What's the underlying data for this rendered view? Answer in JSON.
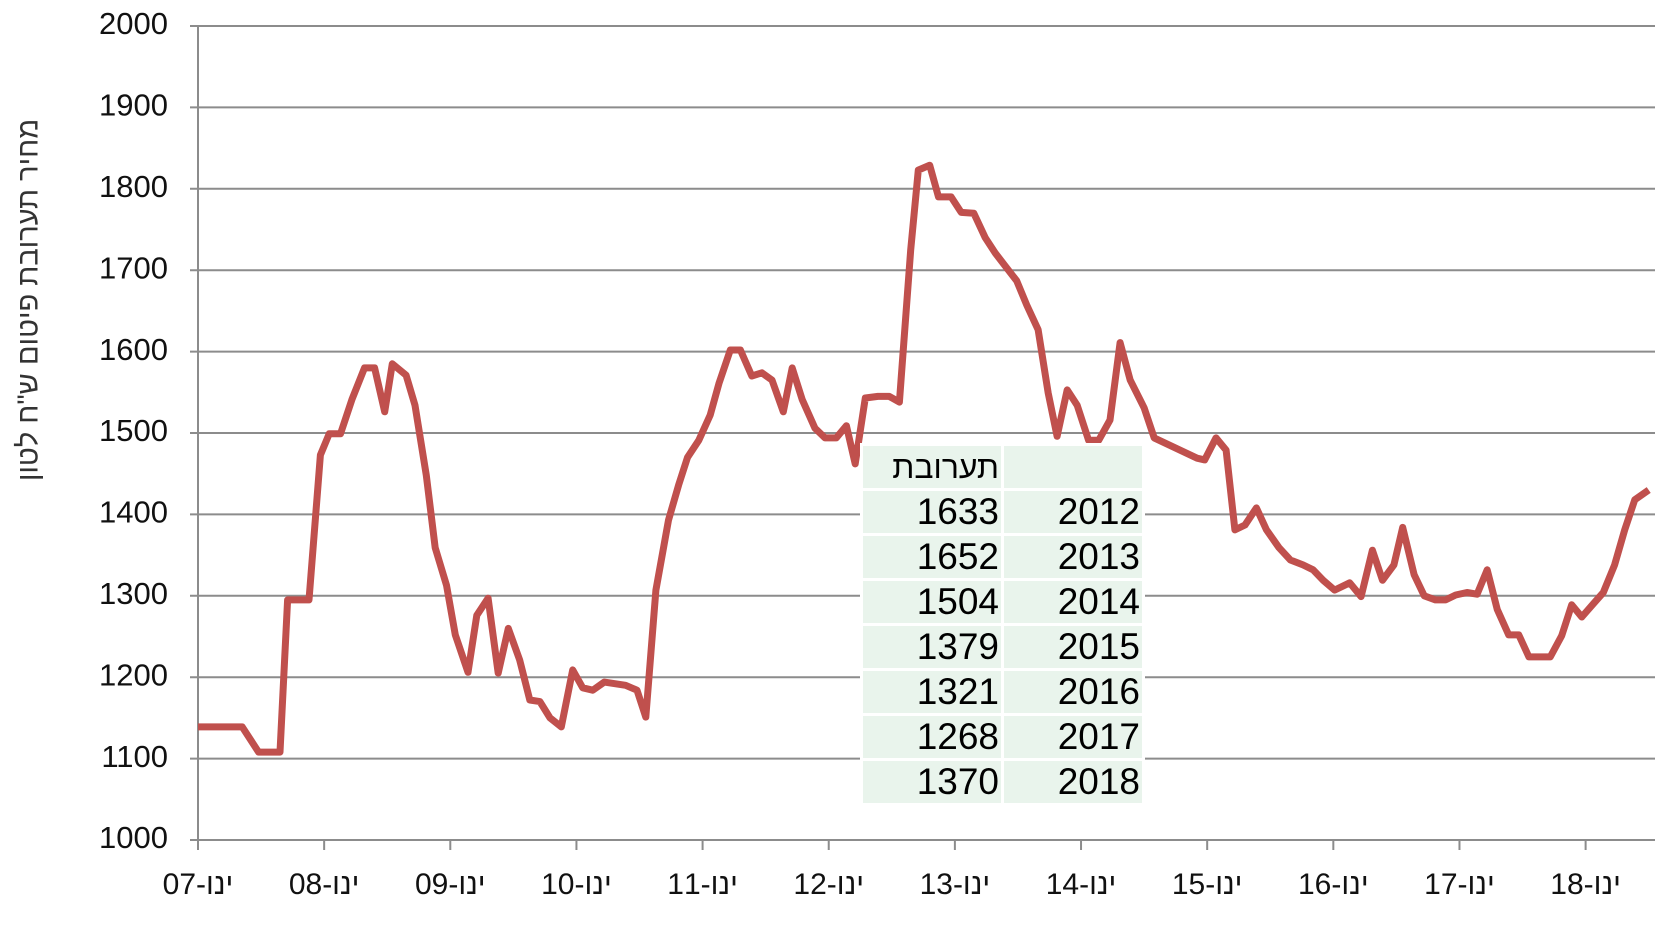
{
  "chart_data": {
    "type": "line",
    "y_label": "מחיר תערובת פיטום ש\"ח לטון",
    "x": [
      2007.0,
      2007.35,
      2007.48,
      2007.65,
      2007.71,
      2007.88,
      2007.97,
      2008.04,
      2008.13,
      2008.22,
      2008.32,
      2008.4,
      2008.48,
      2008.54,
      2008.65,
      2008.72,
      2008.81,
      2008.88,
      2008.97,
      2009.04,
      2009.14,
      2009.21,
      2009.3,
      2009.38,
      2009.46,
      2009.55,
      2009.63,
      2009.71,
      2009.79,
      2009.88,
      2009.97,
      2010.05,
      2010.13,
      2010.22,
      2010.39,
      2010.48,
      2010.55,
      2010.63,
      2010.73,
      2010.81,
      2010.88,
      2010.97,
      2011.06,
      2011.13,
      2011.22,
      2011.3,
      2011.39,
      2011.47,
      2011.55,
      2011.64,
      2011.71,
      2011.79,
      2011.89,
      2011.97,
      2012.06,
      2012.14,
      2012.21,
      2012.29,
      2012.39,
      2012.48,
      2012.56,
      2012.65,
      2012.71,
      2012.8,
      2012.87,
      2012.97,
      2013.05,
      2013.15,
      2013.24,
      2013.32,
      2013.4,
      2013.49,
      2013.57,
      2013.66,
      2013.74,
      2013.81,
      2013.89,
      2013.97,
      2014.06,
      2014.14,
      2014.23,
      2014.31,
      2014.39,
      2014.5,
      2014.58,
      2014.92,
      2014.98,
      2015.07,
      2015.15,
      2015.22,
      2015.3,
      2015.39,
      2015.47,
      2015.57,
      2015.66,
      2015.76,
      2015.84,
      2015.92,
      2016.01,
      2016.13,
      2016.22,
      2016.31,
      2016.39,
      2016.48,
      2016.55,
      2016.64,
      2016.72,
      2016.81,
      2016.89,
      2016.97,
      2017.06,
      2017.14,
      2017.22,
      2017.3,
      2017.39,
      2017.47,
      2017.55,
      2017.65,
      2017.72,
      2017.81,
      2017.89,
      2017.97,
      2018.06,
      2018.14,
      2018.23,
      2018.31,
      2018.39,
      2018.5
    ],
    "series": [
      {
        "color": "#c0504d",
        "values": [
          1139,
          1139,
          1108,
          1108,
          1295,
          1295,
          1473,
          1499,
          1499,
          1541,
          1580,
          1580,
          1526,
          1585,
          1571,
          1534,
          1448,
          1359,
          1313,
          1252,
          1206,
          1276,
          1297,
          1205,
          1260,
          1221,
          1172,
          1170,
          1150,
          1139,
          1209,
          1187,
          1184,
          1194,
          1190,
          1184,
          1151,
          1307,
          1393,
          1436,
          1470,
          1491,
          1522,
          1561,
          1602,
          1602,
          1570,
          1574,
          1565,
          1526,
          1580,
          1541,
          1506,
          1494,
          1494,
          1509,
          1462,
          1543,
          1545,
          1545,
          1538,
          1725,
          1823,
          1829,
          1790,
          1790,
          1771,
          1770,
          1740,
          1721,
          1705,
          1687,
          1657,
          1627,
          1549,
          1496,
          1553,
          1534,
          1491,
          1491,
          1516,
          1611,
          1565,
          1531,
          1494,
          1469,
          1467,
          1494,
          1479,
          1381,
          1387,
          1408,
          1381,
          1359,
          1344,
          1338,
          1332,
          1319,
          1307,
          1316,
          1299,
          1356,
          1319,
          1338,
          1384,
          1326,
          1300,
          1295,
          1295,
          1301,
          1304,
          1302,
          1332,
          1283,
          1252,
          1252,
          1225,
          1225,
          1225,
          1251,
          1289,
          1274,
          1290,
          1304,
          1338,
          1381,
          1418,
          1430
        ]
      }
    ],
    "xlim": [
      2007,
      2018.55
    ],
    "xticks": [
      {
        "value": 2007,
        "label": "ינו-07"
      },
      {
        "value": 2008,
        "label": "ינו-08"
      },
      {
        "value": 2009,
        "label": "ינו-09"
      },
      {
        "value": 2010,
        "label": "ינו-10"
      },
      {
        "value": 2011,
        "label": "ינו-11"
      },
      {
        "value": 2012,
        "label": "ינו-12"
      },
      {
        "value": 2013,
        "label": "ינו-13"
      },
      {
        "value": 2014,
        "label": "ינו-14"
      },
      {
        "value": 2015,
        "label": "ינו-15"
      },
      {
        "value": 2016,
        "label": "ינו-16"
      },
      {
        "value": 2017,
        "label": "ינו-17"
      },
      {
        "value": 2018,
        "label": "ינו-18"
      }
    ],
    "ylim": [
      1000,
      2000
    ],
    "yticks": [
      1000,
      1100,
      1200,
      1300,
      1400,
      1500,
      1600,
      1700,
      1800,
      1900,
      2000
    ],
    "grid": true
  },
  "table": {
    "header": "תערובת",
    "rows": [
      [
        1633,
        2012
      ],
      [
        1652,
        2013
      ],
      [
        1504,
        2014
      ],
      [
        1379,
        2015
      ],
      [
        1321,
        2016
      ],
      [
        1268,
        2017
      ],
      [
        1370,
        2018
      ]
    ]
  }
}
